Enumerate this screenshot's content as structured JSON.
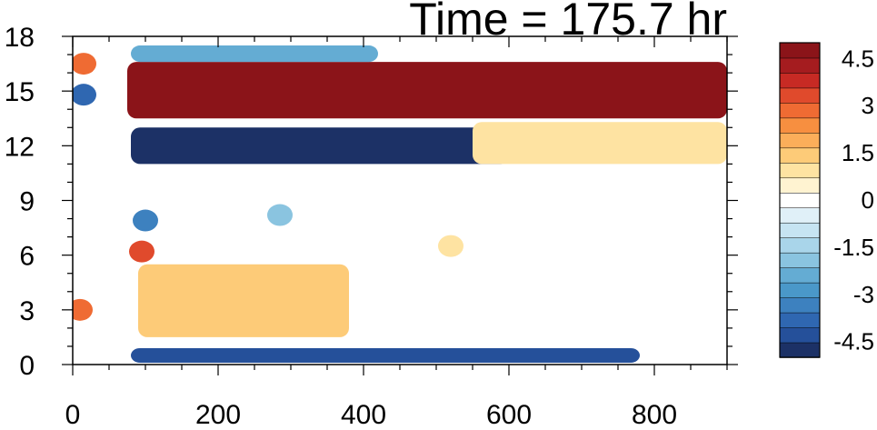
{
  "chart_data": {
    "type": "heatmap",
    "title": "Time = 175.7 hr",
    "xlabel": "",
    "ylabel": "",
    "xlim": [
      0,
      900
    ],
    "ylim": [
      0,
      18
    ],
    "x_ticks": [
      "0",
      "200",
      "400",
      "600",
      "800"
    ],
    "x_tick_values": [
      0,
      200,
      400,
      600,
      800
    ],
    "y_ticks": [
      "0",
      "3",
      "6",
      "9",
      "12",
      "15",
      "18"
    ],
    "y_tick_values": [
      0,
      3,
      6,
      9,
      12,
      15,
      18
    ],
    "grid": false,
    "colorbar": {
      "levels": [
        -5,
        -4.5,
        -4,
        -3.5,
        -3,
        -2.5,
        -2,
        -1.5,
        -1,
        -0.5,
        0,
        0.5,
        1,
        1.5,
        2,
        2.5,
        3,
        3.5,
        4,
        4.5,
        5
      ],
      "colors": [
        "#1c3166",
        "#25509a",
        "#2f67b1",
        "#3d81bf",
        "#4a98c9",
        "#64acd3",
        "#8ac4e0",
        "#a9d5ea",
        "#c6e4f2",
        "#e0f0f8",
        "#ffffff",
        "#fff3d1",
        "#fee3a2",
        "#fdcb78",
        "#fbae5a",
        "#f78f40",
        "#ef6b33",
        "#e04a2c",
        "#c72a24",
        "#a51c1f",
        "#8b1419"
      ],
      "labels": [
        "4.5",
        "3",
        "1.5",
        "0",
        "-1.5",
        "-3",
        "-4.5"
      ],
      "label_values": [
        4.5,
        3,
        1.5,
        0,
        -1.5,
        -3,
        -4.5
      ]
    },
    "features": [
      {
        "kind": "band",
        "x": [
          75,
          900
        ],
        "y": [
          13.5,
          16.6
        ],
        "value": 5.2
      },
      {
        "kind": "band",
        "x": [
          80,
          600
        ],
        "y": [
          11.0,
          13.0
        ],
        "value": -4.8
      },
      {
        "kind": "band",
        "x": [
          80,
          780
        ],
        "y": [
          0.1,
          0.9
        ],
        "value": -4.5
      },
      {
        "kind": "band",
        "x": [
          80,
          420
        ],
        "y": [
          16.6,
          17.5
        ],
        "value": -2.5
      },
      {
        "kind": "band",
        "x": [
          550,
          900
        ],
        "y": [
          11.0,
          13.3
        ],
        "value": 1.4
      },
      {
        "kind": "band",
        "x": [
          90,
          380
        ],
        "y": [
          1.5,
          5.5
        ],
        "value": 1.9
      },
      {
        "kind": "blob",
        "x": 15,
        "y": 16.5,
        "value": 3.0
      },
      {
        "kind": "blob",
        "x": 15,
        "y": 14.8,
        "value": -3.8
      },
      {
        "kind": "blob",
        "x": 10,
        "y": 3.0,
        "value": 3.3
      },
      {
        "kind": "blob",
        "x": 285,
        "y": 8.2,
        "value": -2.0
      },
      {
        "kind": "blob",
        "x": 100,
        "y": 7.9,
        "value": -3.5
      },
      {
        "kind": "blob",
        "x": 95,
        "y": 6.2,
        "value": 3.5
      },
      {
        "kind": "blob",
        "x": 520,
        "y": 6.5,
        "value": 1.0
      }
    ]
  }
}
